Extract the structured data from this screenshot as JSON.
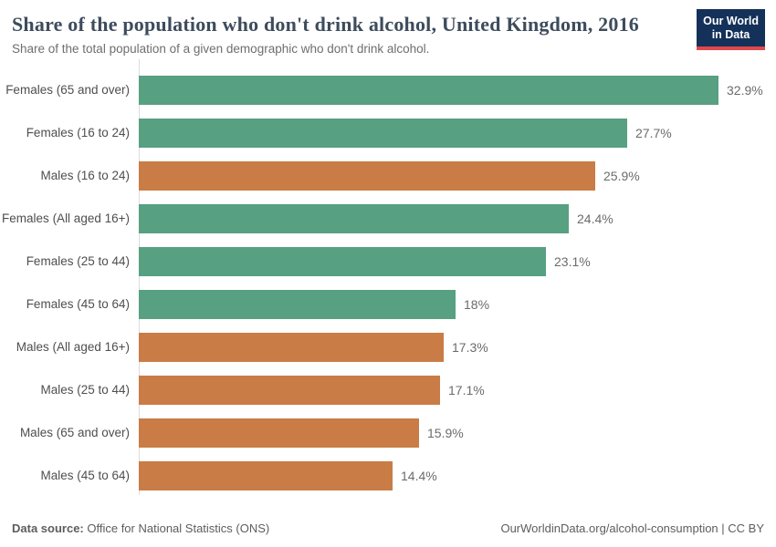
{
  "header": {
    "title": "Share of the population who don't drink alcohol, United Kingdom, 2016",
    "subtitle": "Share of the total population of a given demographic who don't drink alcohol.",
    "logo": {
      "line1": "Our World",
      "line2": "in Data",
      "bg_color": "#14315a",
      "accent_color": "#e0484c"
    }
  },
  "chart_data": {
    "type": "bar",
    "orientation": "horizontal",
    "title": "Share of the population who don't drink alcohol, United Kingdom, 2016",
    "subtitle": "Share of the total population of a given demographic who don't drink alcohol.",
    "categories": [
      "Females (65 and over)",
      "Females (16 to 24)",
      "Males (16 to 24)",
      "Females (All aged 16+)",
      "Females (25 to 44)",
      "Females (45 to 64)",
      "Males (All aged 16+)",
      "Males (25 to 44)",
      "Males (65 and over)",
      "Males (45 to 64)"
    ],
    "values": [
      32.9,
      27.7,
      25.9,
      24.4,
      23.1,
      18,
      17.3,
      17.1,
      15.9,
      14.4
    ],
    "value_labels": [
      "32.9%",
      "27.7%",
      "25.9%",
      "24.4%",
      "23.1%",
      "18%",
      "17.3%",
      "17.1%",
      "15.9%",
      "14.4%"
    ],
    "groups": [
      "female",
      "female",
      "male",
      "female",
      "female",
      "female",
      "male",
      "male",
      "male",
      "male"
    ],
    "colors": {
      "female": "#57a082",
      "male": "#c97c45"
    },
    "xlabel": "",
    "ylabel": "",
    "xlim": [
      0,
      33
    ],
    "grid": false,
    "legend": "none",
    "unit": "%"
  },
  "footer": {
    "source_label": "Data source:",
    "source_value": " Office for National Statistics (ONS)",
    "credit": "OurWorldinData.org/alcohol-consumption | CC BY"
  }
}
